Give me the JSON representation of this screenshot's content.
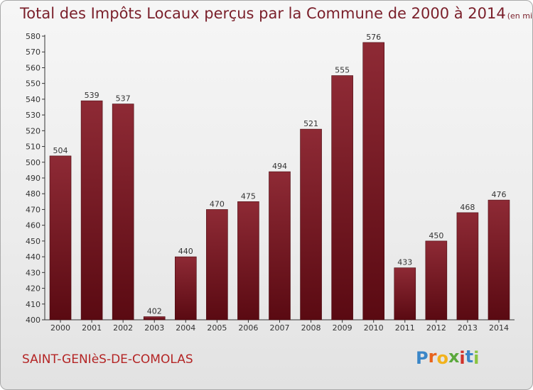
{
  "header": {
    "title": "Total des Impôts Locaux perçus par la Commune de 2000 à 2014",
    "subtitle": "(en milliers d'€)"
  },
  "footer": {
    "commune": "SAINT-GENIèS-DE-COMOLAS",
    "logo_letters": [
      "P",
      "r",
      "o",
      "x",
      "i",
      "t",
      "i"
    ],
    "logo_colors": [
      "#3a86c8",
      "#e8631c",
      "#f2b21c",
      "#5aa83c",
      "#d0322b",
      "#3a86c8",
      "#8ac43f"
    ]
  },
  "colors": {
    "bar_top": "#8e2a35",
    "bar_bottom": "#5a0a12",
    "text": "#7a1f2a"
  },
  "chart_data": {
    "type": "bar",
    "title": "Total des Impôts Locaux perçus par la Commune de 2000 à 2014",
    "subtitle": "(en milliers d'€)",
    "categories": [
      "2000",
      "2001",
      "2002",
      "2003",
      "2004",
      "2005",
      "2006",
      "2007",
      "2008",
      "2009",
      "2010",
      "2011",
      "2012",
      "2013",
      "2014"
    ],
    "values": [
      504,
      539,
      537,
      402,
      440,
      470,
      475,
      494,
      521,
      555,
      576,
      433,
      450,
      468,
      476
    ],
    "ylim": [
      400,
      580
    ],
    "yticks": [
      400,
      410,
      420,
      430,
      440,
      450,
      460,
      470,
      480,
      490,
      500,
      510,
      520,
      530,
      540,
      550,
      560,
      570,
      580
    ],
    "xlabel": "",
    "ylabel": "",
    "grid": false,
    "legend": "none"
  }
}
